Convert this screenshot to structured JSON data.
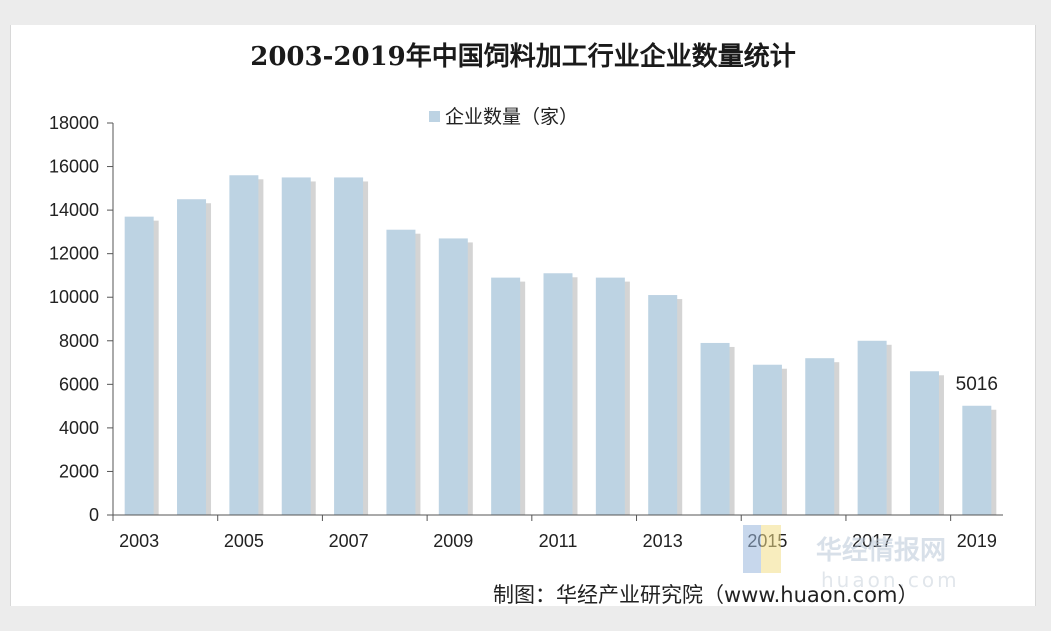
{
  "chart_data": {
    "type": "bar",
    "title": "2003-2019年中国饲料加工行业企业数量统计",
    "legend": {
      "label": "企业数量（家）",
      "position": "top"
    },
    "categories": [
      "2003",
      "2004",
      "2005",
      "2006",
      "2007",
      "2008",
      "2009",
      "2010",
      "2011",
      "2012",
      "2013",
      "2014",
      "2015",
      "2016",
      "2017",
      "2018",
      "2019"
    ],
    "x_tick_labels": [
      "2003",
      "2005",
      "2007",
      "2009",
      "2011",
      "2013",
      "2015",
      "2017",
      "2019"
    ],
    "series": [
      {
        "name": "企业数量（家）",
        "values": [
          13700,
          14500,
          15600,
          15500,
          15500,
          13100,
          12700,
          10900,
          11100,
          10900,
          10100,
          7900,
          6900,
          7200,
          8000,
          6600,
          5016
        ]
      }
    ],
    "data_labels": [
      {
        "category": "2019",
        "text": "5016"
      }
    ],
    "ylim": [
      0,
      18000
    ],
    "y_ticks": [
      0,
      2000,
      4000,
      6000,
      8000,
      10000,
      12000,
      14000,
      16000,
      18000
    ],
    "xlabel": "",
    "ylabel": "",
    "bar_color": "#bdd3e3",
    "shadow_color": "#d4d4d4"
  },
  "source": "制图：华经产业研究院（www.huaon.com）",
  "watermark": {
    "text": "华经情报网",
    "subtext": "huaon.com"
  }
}
